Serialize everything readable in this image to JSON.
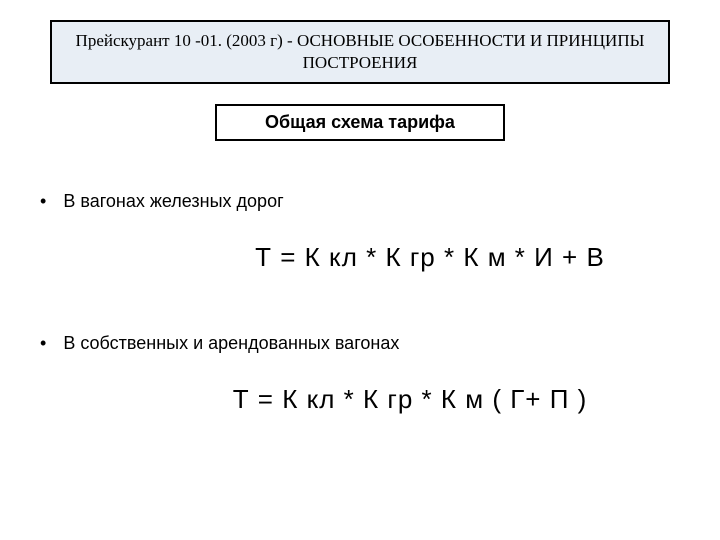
{
  "title_box": {
    "text": "Прейскурант 10 -01. (2003 г)  - ОСНОВНЫЕ ОСОБЕННОСТИ И ПРИНЦИПЫ ПОСТРОЕНИЯ",
    "border_color": "#000000",
    "background_color": "#e8eef5",
    "fontsize": 17
  },
  "subtitle_box": {
    "text": "Общая схема тарифа",
    "border_color": "#000000",
    "background_color": "#ffffff",
    "fontsize": 18
  },
  "bullet1": {
    "marker": "•",
    "text": "В вагонах железных дорог",
    "fontsize": 18
  },
  "formula1": {
    "text": "Т =  К кл * К гр * К м * И + В",
    "fontsize": 26
  },
  "bullet2": {
    "marker": "•",
    "text": "В собственных и арендованных вагонах",
    "fontsize": 18
  },
  "formula2": {
    "text": "Т = К кл * К гр * К м ( Г+ П )",
    "fontsize": 26
  },
  "page_background": "#ffffff"
}
